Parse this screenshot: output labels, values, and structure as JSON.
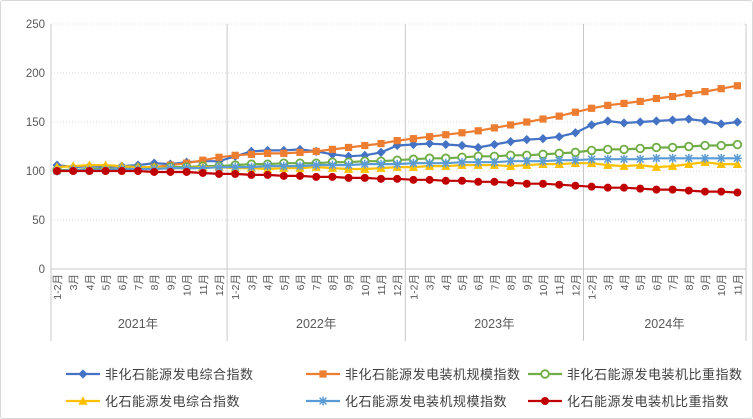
{
  "chart_data": {
    "type": "line",
    "title": "",
    "xlabel": "",
    "ylabel": "",
    "ylim": [
      0,
      250
    ],
    "y_ticks": [
      0,
      50,
      100,
      150,
      200,
      250
    ],
    "grid": "dotted-horizontal",
    "legend_position": "bottom",
    "axis_text_color": "#595959",
    "grid_color": "#d9d9d9",
    "axis_line_color": "#c8c8c8",
    "x_axis": {
      "month_labels": [
        "1-2月",
        "3月",
        "4月",
        "5月",
        "6月",
        "7月",
        "8月",
        "9月",
        "10月",
        "11月",
        "12月"
      ],
      "years": [
        {
          "label": "2021年",
          "months": [
            "1-2月",
            "3月",
            "4月",
            "5月",
            "6月",
            "7月",
            "8月",
            "9月",
            "10月",
            "11月",
            "12月"
          ]
        },
        {
          "label": "2022年",
          "months": [
            "1-2月",
            "3月",
            "4月",
            "5月",
            "6月",
            "7月",
            "8月",
            "9月",
            "10月",
            "11月",
            "12月"
          ]
        },
        {
          "label": "2023年",
          "months": [
            "1-2月",
            "3月",
            "4月",
            "5月",
            "6月",
            "7月",
            "8月",
            "9月",
            "10月",
            "11月",
            "12月"
          ]
        },
        {
          "label": "2024年",
          "months": [
            "1-2月",
            "3月",
            "4月",
            "5月",
            "6月",
            "7月",
            "8月",
            "9月",
            "10月",
            "11月"
          ]
        }
      ]
    },
    "series": [
      {
        "name": "非化石能源发电综合指数",
        "marker": "diamond",
        "color": "#4472C4",
        "values": [
          106,
          104,
          105,
          104,
          105,
          106,
          108,
          107,
          109,
          110,
          110,
          115,
          120,
          121,
          121,
          122,
          120,
          117,
          115,
          116,
          119,
          126,
          127,
          128,
          127,
          126,
          124,
          127,
          130,
          132,
          133,
          135,
          139,
          147,
          151,
          149,
          150,
          151,
          152,
          153,
          151,
          148,
          150
        ]
      },
      {
        "name": "非化石能源发电装机规模指数",
        "marker": "square",
        "color": "#ED7D31",
        "values": [
          100,
          101,
          101,
          102,
          102,
          103,
          104,
          106,
          108,
          111,
          114,
          116,
          117,
          118,
          118,
          119,
          120,
          122,
          124,
          126,
          128,
          131,
          133,
          135,
          137,
          139,
          141,
          144,
          147,
          150,
          153,
          156,
          160,
          164,
          167,
          169,
          171,
          174,
          176,
          179,
          181,
          184,
          187
        ]
      },
      {
        "name": "非化石能源发电装机比重指数",
        "marker": "circle-open",
        "color": "#70AD47",
        "values": [
          101,
          101,
          102,
          102,
          102,
          103,
          103,
          104,
          104,
          105,
          105,
          106,
          107,
          107,
          108,
          108,
          108,
          109,
          109,
          110,
          110,
          111,
          112,
          113,
          113,
          114,
          115,
          115,
          116,
          116,
          117,
          118,
          119,
          121,
          122,
          122,
          123,
          124,
          124,
          125,
          126,
          126,
          127
        ]
      },
      {
        "name": "化石能源发电综合指数",
        "marker": "triangle",
        "color": "#FFC000",
        "values": [
          104,
          105,
          106,
          106,
          105,
          104,
          104,
          103,
          103,
          104,
          104,
          103,
          103,
          102,
          103,
          103,
          104,
          103,
          102,
          102,
          103,
          104,
          104,
          105,
          105,
          106,
          106,
          106,
          105,
          106,
          107,
          107,
          108,
          108,
          106,
          105,
          106,
          104,
          105,
          107,
          109,
          107,
          107
        ]
      },
      {
        "name": "化石能源发电装机规模指数",
        "marker": "asterisk",
        "color": "#5B9BD5",
        "values": [
          100,
          101,
          101,
          101,
          102,
          102,
          102,
          103,
          103,
          103,
          104,
          104,
          104,
          105,
          105,
          105,
          106,
          106,
          106,
          107,
          107,
          107,
          108,
          108,
          108,
          109,
          109,
          109,
          110,
          110,
          110,
          111,
          111,
          112,
          112,
          112,
          112,
          113,
          113,
          113,
          113,
          113,
          113
        ]
      },
      {
        "name": "化石能源发电装机比重指数",
        "marker": "circle",
        "color": "#C00000",
        "values": [
          100,
          100,
          100,
          100,
          100,
          100,
          99,
          99,
          99,
          98,
          97,
          97,
          96,
          96,
          95,
          95,
          94,
          94,
          93,
          93,
          92,
          92,
          91,
          91,
          90,
          90,
          89,
          89,
          88,
          87,
          87,
          86,
          85,
          84,
          83,
          83,
          82,
          81,
          81,
          80,
          79,
          79,
          78
        ]
      }
    ]
  }
}
